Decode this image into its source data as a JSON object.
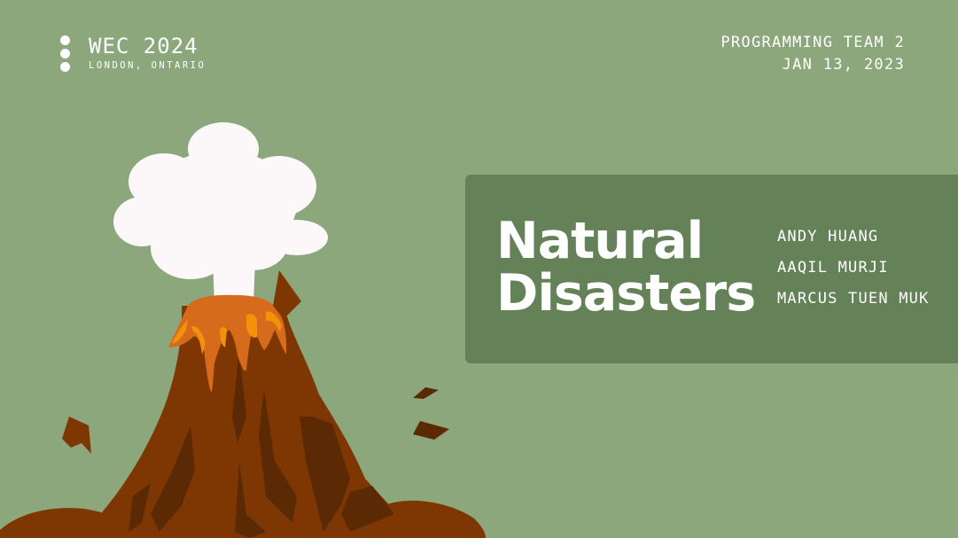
{
  "brand": {
    "title": "WEC 2024",
    "subtitle": "LONDON, ONTARIO"
  },
  "meta": {
    "team": "PROGRAMMING TEAM 2",
    "date": "JAN 13, 2023"
  },
  "panel": {
    "title_line1": "Natural",
    "title_line2": "Disasters",
    "members": [
      "ANDY HUANG",
      "AAQIL MURJI",
      "MARCUS TUEN MUK"
    ]
  },
  "colors": {
    "background": "#8ca77c",
    "panel": "#648157",
    "text": "#ffffff",
    "smoke": "#fcf8fa",
    "rock_light": "#7e3703",
    "rock_dark": "#5c2905",
    "lava": "#d56b1b",
    "lava_bright": "#f5900b"
  },
  "illustration": {
    "icon": "erupting-volcano-icon"
  }
}
